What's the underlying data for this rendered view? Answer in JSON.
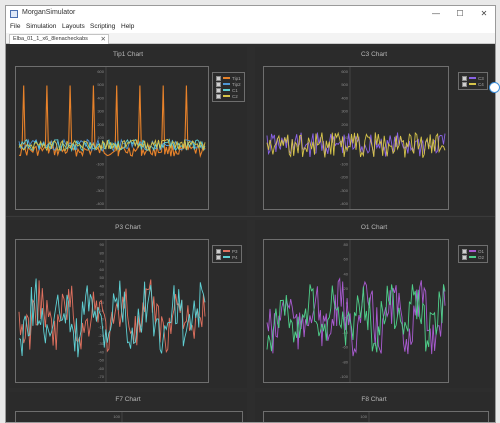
{
  "window": {
    "title": "MorganSimulator",
    "minimize_glyph": "—",
    "maximize_glyph": "☐",
    "close_glyph": "✕"
  },
  "menu": [
    "File",
    "Simulation",
    "Layouts",
    "Scripting",
    "Help"
  ],
  "tab": {
    "label": "Elba_01_1_x6_8lenacheckabs",
    "close_glyph": "✕"
  },
  "colors": {
    "orange": "#e8822a",
    "blue": "#4f97d6",
    "cyan": "#5fd0d4",
    "purple": "#8a63e6",
    "yellow": "#d6c44a",
    "red": "#e0715f",
    "green": "#4fcf8a",
    "magenta": "#a95bd1"
  },
  "panels": [
    {
      "title": "Tip1 Chart",
      "y_ticks": [
        "600",
        "500",
        "400",
        "300",
        "200",
        "100",
        "0",
        "-100",
        "-200",
        "-300",
        "-400"
      ],
      "legend": [
        {
          "label": "Tip1",
          "color": "orange"
        },
        {
          "label": "Tip2",
          "color": "blue"
        },
        {
          "label": "C1",
          "color": "cyan"
        },
        {
          "label": "C2",
          "color": "yellow"
        }
      ]
    },
    {
      "title": "C3 Chart",
      "y_ticks": [
        "600",
        "500",
        "400",
        "300",
        "200",
        "100",
        "0",
        "-100",
        "-200",
        "-300",
        "-400"
      ],
      "legend": [
        {
          "label": "C3",
          "color": "purple"
        },
        {
          "label": "C4",
          "color": "yellow"
        }
      ]
    },
    {
      "title": "P3 Chart",
      "y_ticks": [
        "90",
        "80",
        "70",
        "60",
        "50",
        "40",
        "30",
        "20",
        "10",
        "0",
        "-10",
        "-20",
        "-30",
        "-40",
        "-50",
        "-60",
        "-70"
      ],
      "legend": [
        {
          "label": "P3",
          "color": "red"
        },
        {
          "label": "P4",
          "color": "cyan"
        }
      ]
    },
    {
      "title": "O1 Chart",
      "y_ticks": [
        "80",
        "60",
        "40",
        "20",
        "0",
        "-20",
        "-40",
        "-60",
        "-80",
        "-100"
      ],
      "legend": [
        {
          "label": "O1",
          "color": "magenta"
        },
        {
          "label": "O2",
          "color": "green"
        }
      ]
    },
    {
      "title": "F7 Chart",
      "y_ticks": [
        "100"
      ],
      "legend": []
    },
    {
      "title": "F8 Chart",
      "y_ticks": [
        "100"
      ],
      "legend": []
    }
  ]
}
